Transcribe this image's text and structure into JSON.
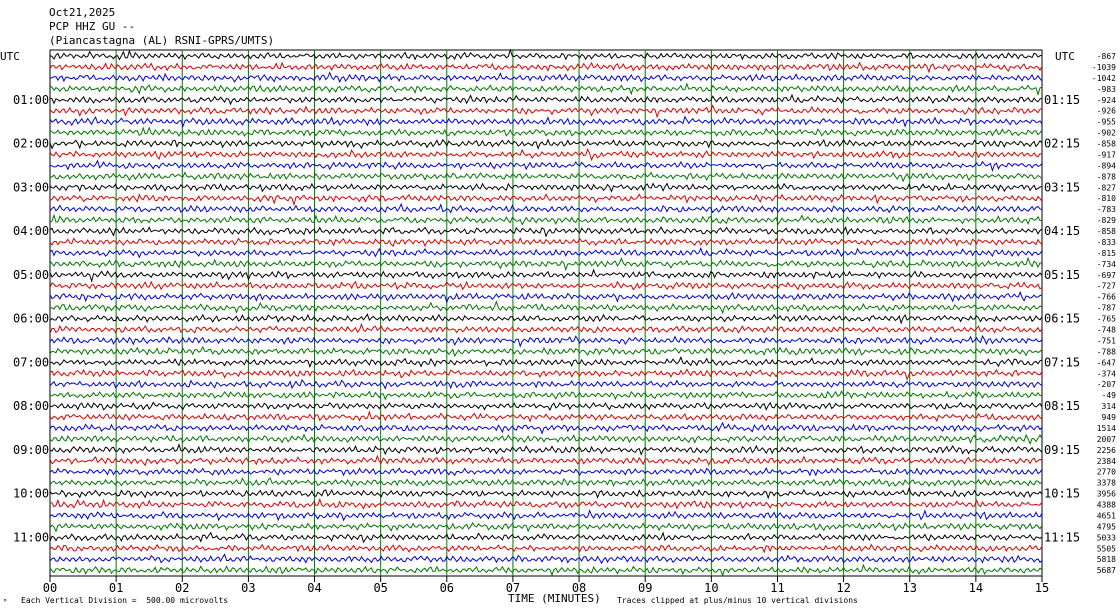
{
  "header": {
    "date": "Oct21,2025",
    "channel": "PCP HHZ GU --",
    "station": "(Piancastagna (AL) RSNI-GPRS/UMTS)"
  },
  "left_axis_label": "UTC",
  "right_axis_label": "UTC",
  "footer": {
    "mark": "ᴹ",
    "division": "Each Vertical Division =  500.00 microvolts",
    "xlabel": "TIME (MINUTES)",
    "clip": "Traces clipped at plus/minus 10 vertical divisions"
  },
  "colors": {
    "trace_cycle": [
      "#000000",
      "#dd0000",
      "#0000dd",
      "#007700"
    ],
    "grid": "#007700"
  },
  "chart_data": {
    "type": "line",
    "description_type": "seismogram helicorder",
    "xlabel": "TIME (MINUTES)",
    "xlim": [
      0,
      15
    ],
    "x_ticks": [
      "00",
      "01",
      "02",
      "03",
      "04",
      "05",
      "06",
      "07",
      "08",
      "09",
      "10",
      "11",
      "12",
      "13",
      "14",
      "15"
    ],
    "left_hour_labels": [
      "01:00",
      "02:00",
      "03:00",
      "04:00",
      "05:00",
      "06:00",
      "07:00",
      "08:00",
      "09:00",
      "10:00",
      "11:00"
    ],
    "right_hour_labels": [
      "01:15",
      "02:15",
      "03:15",
      "04:15",
      "05:15",
      "06:15",
      "07:15",
      "08:15",
      "09:15",
      "10:15",
      "11:15"
    ],
    "trace_count": 48,
    "trace_offsets": [
      "-867",
      "-1039",
      "-1042",
      "-983",
      "-924",
      "-926",
      "-955",
      "-902",
      "-858",
      "-917",
      "-894",
      "-878",
      "-827",
      "-810",
      "-783",
      "-829",
      "-858",
      "-833",
      "-815",
      "-734",
      "-697",
      "-727",
      "-766",
      "-787",
      "-765",
      "-748",
      "-751",
      "-788",
      "-647",
      "-374",
      "-207",
      "-49",
      "314",
      "949",
      "1514",
      "2007",
      "2256",
      "2384",
      "2770",
      "3378",
      "3956",
      "4388",
      "4651",
      "4795",
      "5033",
      "5505",
      "5818",
      "5687"
    ],
    "y_units": "500.00 microvolts per vertical division",
    "grid": true
  }
}
